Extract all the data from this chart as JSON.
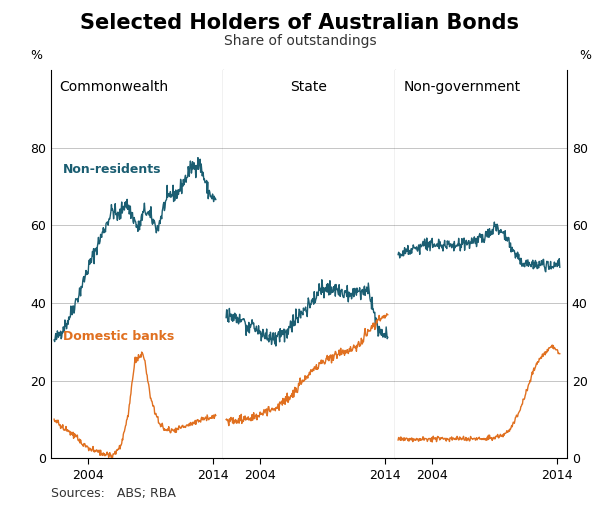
{
  "title": "Selected Holders of Australian Bonds",
  "subtitle": "Share of outstandings",
  "source": "Sources:   ABS; RBA",
  "teal_color": "#1B5E72",
  "orange_color": "#E07020",
  "panel_labels": [
    "Commonwealth",
    "State",
    "Non-government"
  ],
  "label_nonresidents": "Non-residents",
  "label_banks": "Domestic banks",
  "ylim": [
    0,
    100
  ],
  "yticks": [
    0,
    20,
    40,
    60,
    80
  ],
  "background": "#ffffff",
  "grid_color": "#bbbbbb",
  "title_fontsize": 15,
  "subtitle_fontsize": 10,
  "panel_label_fontsize": 10,
  "tick_fontsize": 9,
  "annotation_fontsize": 9,
  "source_fontsize": 9,
  "xlim_start": 2001.0,
  "xlim_end": 2014.83,
  "xticks": [
    2004,
    2014
  ],
  "xticklabels": [
    "2004",
    "2014"
  ]
}
